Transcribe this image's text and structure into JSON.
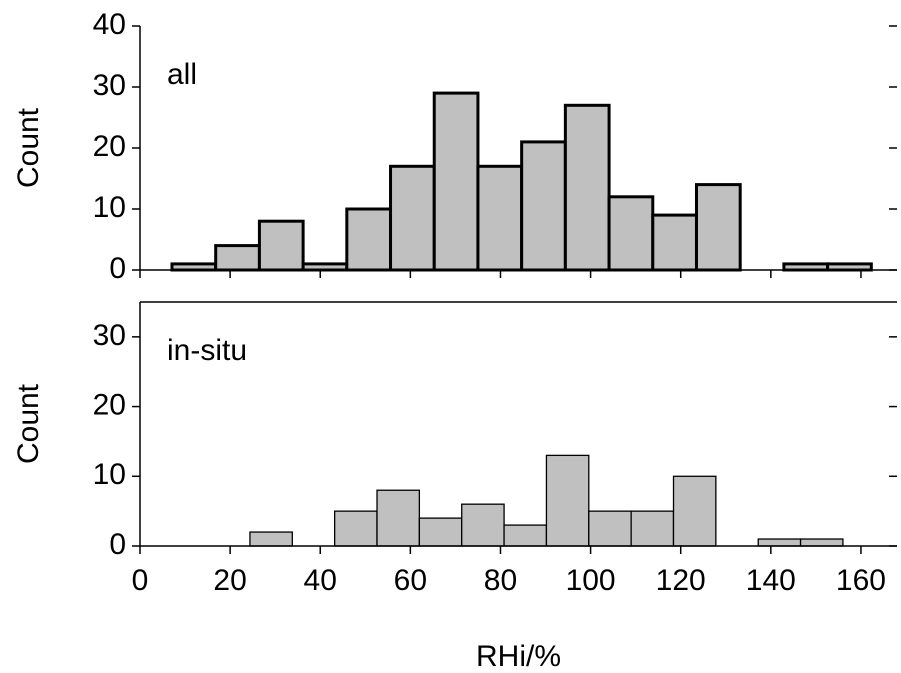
{
  "chart_data": [
    {
      "type": "histogram",
      "annotation": "all",
      "ylabel": "Count",
      "color": "#c0c0c0",
      "bins": [
        7.1,
        16.8,
        26.5,
        36.2,
        45.9,
        55.6,
        65.3,
        75.0,
        84.7,
        94.4,
        104.1,
        113.8,
        123.5,
        133.2,
        142.9,
        152.6,
        162.3
      ],
      "values": [
        1,
        4,
        8,
        1,
        10,
        17,
        29,
        17,
        21,
        27,
        12,
        9,
        14,
        0,
        1,
        1
      ],
      "xlim": [
        0,
        168
      ],
      "ylim": [
        0,
        40
      ],
      "yticks": [
        0,
        10,
        20,
        30,
        40
      ]
    },
    {
      "type": "histogram",
      "annotation": "in-situ",
      "ylabel": "Count",
      "xlabel": "RHi/%",
      "color": "#c0c0c0",
      "bins": [
        24.4,
        33.8,
        43.2,
        52.6,
        62.0,
        71.4,
        80.8,
        90.2,
        99.6,
        109.0,
        118.4,
        127.8,
        137.2,
        146.6,
        156.0
      ],
      "values": [
        2,
        0,
        5,
        8,
        4,
        6,
        3,
        13,
        5,
        5,
        10,
        0,
        1,
        1
      ],
      "xlim": [
        0,
        168
      ],
      "ylim": [
        0,
        35
      ],
      "yticks": [
        0,
        10,
        20,
        30
      ],
      "xticks": [
        0,
        20,
        40,
        60,
        80,
        100,
        120,
        140,
        160
      ]
    }
  ]
}
